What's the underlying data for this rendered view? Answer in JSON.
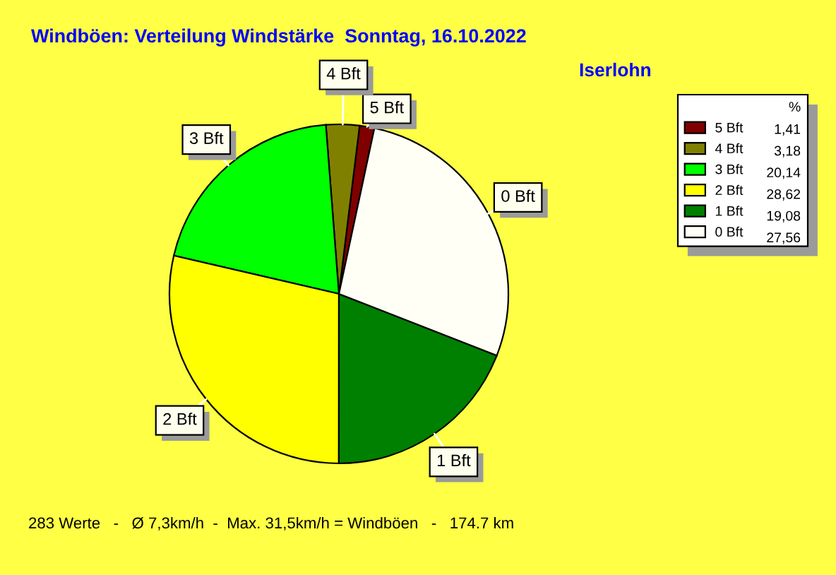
{
  "chart_data": {
    "type": "pie",
    "title": "Windböen: Verteilung Windstärke  Sonntag, 16.10.2022",
    "subtitle": "Iserlohn",
    "legend_title": "%",
    "categories": [
      "5 Bft",
      "4 Bft",
      "3 Bft",
      "2 Bft",
      "1 Bft",
      "0 Bft"
    ],
    "values": [
      1.41,
      3.18,
      20.14,
      28.62,
      19.08,
      27.56
    ],
    "value_labels": [
      "1,41",
      "3,18",
      "20,14",
      "28,62",
      "19,08",
      "27,56"
    ],
    "colors": [
      "#800000",
      "#808000",
      "#00ff00",
      "#ffff00",
      "#008000",
      "#fffff5"
    ],
    "legend": "top right",
    "annotations": [
      "283 Werte   -   Ø 7,3km/h  -  Max. 31,5km/h = Windböen   -   174.7 km"
    ]
  }
}
